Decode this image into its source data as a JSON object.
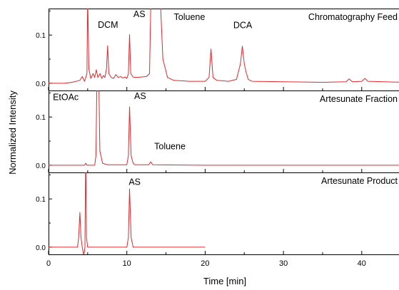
{
  "chart_data": {
    "type": "line",
    "xlabel": "Time [min]",
    "ylabel": "Normalized Intensity",
    "xlim": [
      0,
      45
    ],
    "x_ticks": [
      "0",
      "10",
      "20",
      "30",
      "40"
    ],
    "series_color": "#e8262b",
    "panels": [
      {
        "name": "Chromatography Feed",
        "ylim": [
          -0.015,
          0.155
        ],
        "y_ticks": [
          "0.0",
          "0.1"
        ],
        "annotations": [
          {
            "text": "DCM",
            "x": 7.6,
            "y": 0.115
          },
          {
            "text": "AS",
            "x": 11.6,
            "y": 0.137
          },
          {
            "text": "Toluene",
            "x": 18.0,
            "y": 0.131
          },
          {
            "text": "DCA",
            "x": 24.8,
            "y": 0.114
          }
        ],
        "points": [
          [
            0,
            0.0
          ],
          [
            2.0,
            0.0
          ],
          [
            3.0,
            0.002
          ],
          [
            4.0,
            0.006
          ],
          [
            4.3,
            0.014
          ],
          [
            4.6,
            0.004
          ],
          [
            4.9,
            0.02
          ],
          [
            5.0,
            0.18
          ],
          [
            5.15,
            0.03
          ],
          [
            5.4,
            0.01
          ],
          [
            5.7,
            0.02
          ],
          [
            5.9,
            0.012
          ],
          [
            6.1,
            0.028
          ],
          [
            6.3,
            0.012
          ],
          [
            6.6,
            0.02
          ],
          [
            6.8,
            0.01
          ],
          [
            7.0,
            0.016
          ],
          [
            7.2,
            0.012
          ],
          [
            7.4,
            0.03
          ],
          [
            7.55,
            0.078
          ],
          [
            7.7,
            0.02
          ],
          [
            8.0,
            0.012
          ],
          [
            8.3,
            0.01
          ],
          [
            8.6,
            0.018
          ],
          [
            8.9,
            0.012
          ],
          [
            9.2,
            0.014
          ],
          [
            9.5,
            0.011
          ],
          [
            9.8,
            0.013
          ],
          [
            10.0,
            0.01
          ],
          [
            10.2,
            0.02
          ],
          [
            10.35,
            0.101
          ],
          [
            10.5,
            0.02
          ],
          [
            10.8,
            0.013
          ],
          [
            11.2,
            0.012
          ],
          [
            11.8,
            0.013
          ],
          [
            12.5,
            0.014
          ],
          [
            12.9,
            0.02
          ],
          [
            13.1,
            0.2
          ],
          [
            14.2,
            0.2
          ],
          [
            14.6,
            0.05
          ],
          [
            15.2,
            0.012
          ],
          [
            16.0,
            0.006
          ],
          [
            18.0,
            0.004
          ],
          [
            20.0,
            0.004
          ],
          [
            20.5,
            0.012
          ],
          [
            20.75,
            0.071
          ],
          [
            21.0,
            0.012
          ],
          [
            21.5,
            0.006
          ],
          [
            23.0,
            0.004
          ],
          [
            24.0,
            0.008
          ],
          [
            24.5,
            0.04
          ],
          [
            24.75,
            0.077
          ],
          [
            25.0,
            0.04
          ],
          [
            25.2,
            0.025
          ],
          [
            25.5,
            0.008
          ],
          [
            26.0,
            0.004
          ],
          [
            30.0,
            0.003
          ],
          [
            35.0,
            0.002
          ],
          [
            38.0,
            0.003
          ],
          [
            38.4,
            0.009
          ],
          [
            38.8,
            0.003
          ],
          [
            40.0,
            0.004
          ],
          [
            40.4,
            0.01
          ],
          [
            40.8,
            0.004
          ],
          [
            45.0,
            0.002
          ]
        ]
      },
      {
        "name": "Artesunate Fraction",
        "ylim": [
          -0.015,
          0.155
        ],
        "y_ticks": [
          "0.0",
          "0.1"
        ],
        "annotations": [
          {
            "text": "EtOAc",
            "x": 2.2,
            "y": 0.135
          },
          {
            "text": "AS",
            "x": 11.7,
            "y": 0.137
          },
          {
            "text": "Toluene",
            "x": 15.5,
            "y": 0.033
          }
        ],
        "points": [
          [
            0,
            0.0
          ],
          [
            4.6,
            0.0
          ],
          [
            4.75,
            0.004
          ],
          [
            4.9,
            0.0
          ],
          [
            5.9,
            0.0
          ],
          [
            6.05,
            0.02
          ],
          [
            6.2,
            0.2
          ],
          [
            6.4,
            0.2
          ],
          [
            6.55,
            0.03
          ],
          [
            6.9,
            0.004
          ],
          [
            7.5,
            0.001
          ],
          [
            10.0,
            0.001
          ],
          [
            10.2,
            0.02
          ],
          [
            10.35,
            0.121
          ],
          [
            10.55,
            0.02
          ],
          [
            10.8,
            0.004
          ],
          [
            11.0,
            0.001
          ],
          [
            12.8,
            0.001
          ],
          [
            13.05,
            0.007
          ],
          [
            13.3,
            0.001
          ],
          [
            20.0,
            0.0
          ],
          [
            45.0,
            0.0
          ]
        ]
      },
      {
        "name": "Artesunate Product",
        "ylim": [
          -0.015,
          0.155
        ],
        "y_ticks": [
          "0.0",
          "0.1"
        ],
        "annotations": [
          {
            "text": "AS",
            "x": 11.0,
            "y": 0.129
          }
        ],
        "points": [
          [
            0,
            0.0
          ],
          [
            3.7,
            0.0
          ],
          [
            3.85,
            0.02
          ],
          [
            4.0,
            0.072
          ],
          [
            4.15,
            0.02
          ],
          [
            4.3,
            0.0
          ],
          [
            4.5,
            -0.018
          ],
          [
            4.65,
            0.0
          ],
          [
            4.75,
            0.2
          ],
          [
            4.85,
            0.02
          ],
          [
            5.0,
            0.0
          ],
          [
            10.0,
            0.0
          ],
          [
            10.2,
            0.02
          ],
          [
            10.35,
            0.121
          ],
          [
            10.55,
            0.02
          ],
          [
            10.8,
            0.0
          ],
          [
            20.0,
            0.0
          ]
        ]
      }
    ]
  }
}
